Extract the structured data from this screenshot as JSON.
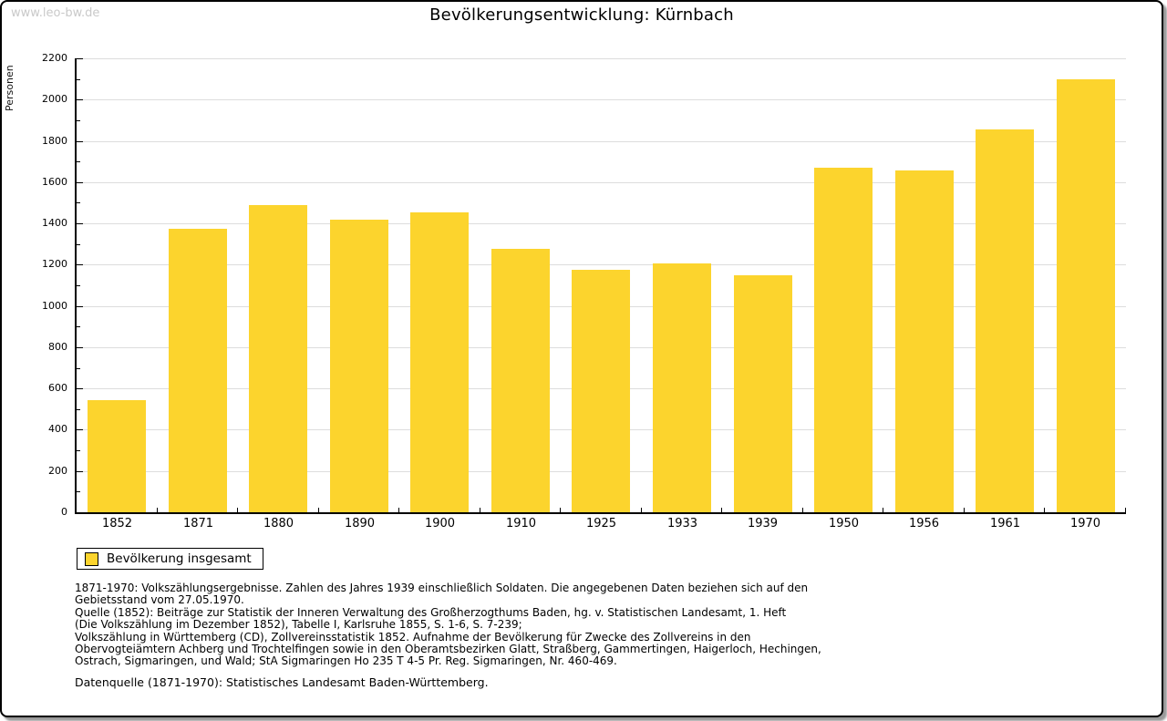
{
  "watermark": "www.leo-bw.de",
  "title": "Bevölkerungsentwicklung: Kürnbach",
  "chart_data": {
    "type": "bar",
    "title": "Bevölkerungsentwicklung: Kürnbach",
    "xlabel": "",
    "ylabel": "Personen",
    "categories": [
      "1852",
      "1871",
      "1880",
      "1890",
      "1900",
      "1910",
      "1925",
      "1933",
      "1939",
      "1950",
      "1956",
      "1961",
      "1970"
    ],
    "values": [
      543,
      1374,
      1489,
      1417,
      1454,
      1277,
      1175,
      1206,
      1147,
      1668,
      1658,
      1856,
      2099
    ],
    "ylim": [
      0,
      2200
    ],
    "ytick_step": 200,
    "yminor_step": 100,
    "grid": "horizontal",
    "grid_color": "#dddddd",
    "bar_color": "#fcd42d",
    "legend_position": "bottom-left",
    "legend_entries": [
      "Bevölkerung insgesamt"
    ]
  },
  "legend": {
    "label": "Bevölkerung insgesamt",
    "swatch_color": "#fcd42d"
  },
  "footnotes": {
    "lines": [
      "1871-1970: Volkszählungsergebnisse. Zahlen des Jahres 1939 einschließlich Soldaten. Die angegebenen Daten beziehen sich auf den",
      "Gebietsstand vom 27.05.1970.",
      "Quelle (1852): Beiträge zur Statistik der Inneren Verwaltung des Großherzogthums Baden, hg. v. Statistischen Landesamt, 1. Heft",
      "(Die Volkszählung im Dezember 1852), Tabelle I, Karlsruhe 1855, S. 1-6, S. 7-239;",
      "Volkszählung in Württemberg (CD), Zollvereinsstatistik 1852. Aufnahme der Bevölkerung für Zwecke des Zollvereins in den",
      "Obervogteiämtern Achberg und Trochtelfingen sowie in den Oberamtsbezirken Glatt, Straßberg, Gammertingen, Haigerloch, Hechingen,",
      "Ostrach, Sigmaringen, und Wald; StA Sigmaringen Ho 235 T 4-5 Pr. Reg. Sigmaringen, Nr. 460-469."
    ],
    "datasource": "Datenquelle (1871-1970): Statistisches Landesamt Baden-Württemberg."
  },
  "colors": {
    "bar": "#fcd42d",
    "gridline": "#dddddd",
    "axis": "#000000",
    "watermark": "#c9c9c9",
    "frame_border": "#000000",
    "frame_shadow": "#9a9a9a"
  }
}
